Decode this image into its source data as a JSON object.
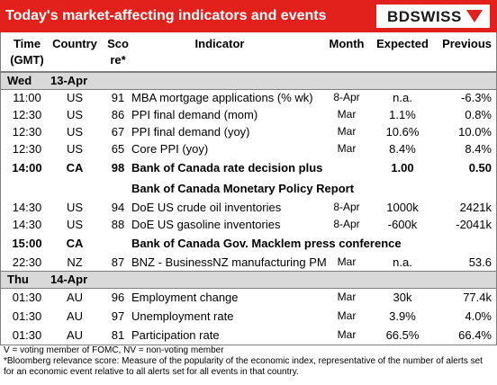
{
  "header": {
    "title": "Today's market-affecting indicators and events",
    "logo": "BDSWISS"
  },
  "table": {
    "columns": [
      {
        "lines": [
          "Time",
          "(GMT)"
        ]
      },
      {
        "lines": [
          "Country"
        ]
      },
      {
        "lines": [
          "Sco",
          "re*"
        ]
      },
      {
        "lines": [
          "Indicator"
        ]
      },
      {
        "lines": [
          "Month"
        ]
      },
      {
        "lines": [
          "Expected"
        ]
      },
      {
        "lines": [
          "Previous"
        ]
      }
    ],
    "days": [
      {
        "day": "Wed",
        "date": "13-Apr",
        "rows": [
          {
            "time": "11:00",
            "country": "US",
            "score": "91",
            "indicator": "MBA mortgage applications (% wk)",
            "month": "8-Apr",
            "expected": "n.a.",
            "previous": "-6.3%"
          },
          {
            "time": "12:30",
            "country": "US",
            "score": "86",
            "indicator": "PPI final demand (mom)",
            "month": "Mar",
            "expected": "1.1%",
            "previous": "0.8%"
          },
          {
            "time": "12:30",
            "country": "US",
            "score": "67",
            "indicator": "PPI final demand (yoy)",
            "month": "Mar",
            "expected": "10.6%",
            "previous": "10.0%"
          },
          {
            "time": "12:30",
            "country": "US",
            "score": "65",
            "indicator": "Core PPI (yoy)",
            "month": "Mar",
            "expected": "8.4%",
            "previous": "8.4%"
          },
          {
            "time": "14:00",
            "country": "CA",
            "score": "98",
            "indicator": "Bank of Canada rate decision plus",
            "expected": "1.00",
            "previous": "0.50",
            "bold": true
          },
          {
            "indicator": "Bank of Canada Monetary Policy Report",
            "bold": true
          },
          {
            "time": "14:30",
            "country": "US",
            "score": "94",
            "indicator": "DoE US crude oil inventories",
            "month": "8-Apr",
            "expected": "1000k",
            "previous": "2421k"
          },
          {
            "time": "14:30",
            "country": "US",
            "score": "88",
            "indicator": "DoE US gasoline inventories",
            "month": "8-Apr",
            "expected": "-600k",
            "previous": "-2041k"
          },
          {
            "time": "15:00",
            "country": "CA",
            "indicator": "Bank of Canada Gov. Macklem press conference",
            "bold": true
          },
          {
            "time": "22:30",
            "country": "NZ",
            "score": "87",
            "indicator": "BNZ - BusinessNZ manufacturing PM",
            "month": "Mar",
            "expected": "n.a.",
            "previous": "53.6"
          }
        ]
      },
      {
        "day": "Thu",
        "date": "14-Apr",
        "rows": [
          {
            "time": "01:30",
            "country": "AU",
            "score": "96",
            "indicator": "Employment change",
            "month": "Mar",
            "expected": "30k",
            "previous": "77.4k"
          },
          {
            "time": "01:30",
            "country": "AU",
            "score": "97",
            "indicator": "Unemployment rate",
            "month": "Mar",
            "expected": "3.9%",
            "previous": "4.0%"
          },
          {
            "time": "01:30",
            "country": "AU",
            "score": "81",
            "indicator": "Participation rate",
            "month": "Mar",
            "expected": "66.5%",
            "previous": "66.4%"
          }
        ]
      }
    ]
  },
  "footnotes": [
    "V = voting member of FOMC, NV = non-voting member",
    "*Bloomberg relevance score:  Measure of the popularity of the economic index, representative of the number of alerts set for an economic event relative to all alerts set for all events in that country."
  ]
}
